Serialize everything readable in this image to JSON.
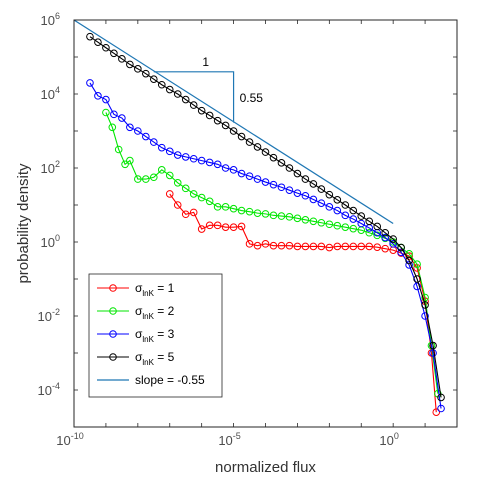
{
  "chart_data": {
    "type": "line",
    "title": "",
    "xlabel": "normalized flux",
    "ylabel": "probability density",
    "xscale": "log",
    "yscale": "log",
    "xlim": [
      1e-10,
      100
    ],
    "ylim": [
      1e-05,
      1000000.0
    ],
    "x_ticks": [
      {
        "base": "10",
        "exp": "-10"
      },
      {
        "base": "10",
        "exp": "-5"
      },
      {
        "base": "10",
        "exp": "0"
      }
    ],
    "y_ticks": [
      {
        "base": "10",
        "exp": "6"
      },
      {
        "base": "10",
        "exp": "4"
      },
      {
        "base": "10",
        "exp": "2"
      },
      {
        "base": "10",
        "exp": "0"
      },
      {
        "base": "10",
        "exp": "-2"
      },
      {
        "base": "10",
        "exp": "-4"
      }
    ],
    "grid": false,
    "legend_placement": "bottom-left",
    "series": [
      {
        "name_main": "σ",
        "name_sub": "lnK",
        "name_rest": " = 1",
        "color": "#ff0000",
        "log_x": [
          -7.0,
          -6.75,
          -6.5,
          -6.25,
          -6.0,
          -5.75,
          -5.5,
          -5.25,
          -5.0,
          -4.75,
          -4.5,
          -4.25,
          -4.0,
          -3.75,
          -3.5,
          -3.25,
          -3.0,
          -2.75,
          -2.5,
          -2.25,
          -2.0,
          -1.75,
          -1.5,
          -1.25,
          -1.0,
          -0.75,
          -0.5,
          -0.25,
          0.0,
          0.25,
          0.5,
          0.75,
          1.0,
          1.2,
          1.35
        ],
        "log_y": [
          1.3,
          1.0,
          0.75,
          0.8,
          0.35,
          0.45,
          0.45,
          0.4,
          0.4,
          0.42,
          -0.05,
          -0.1,
          -0.05,
          -0.1,
          -0.1,
          -0.1,
          -0.12,
          -0.12,
          -0.12,
          -0.12,
          -0.15,
          -0.12,
          -0.12,
          -0.12,
          -0.12,
          -0.12,
          -0.14,
          -0.18,
          -0.22,
          -0.3,
          -0.38,
          -0.7,
          -1.6,
          -3.0,
          -4.6
        ]
      },
      {
        "name_main": "σ",
        "name_sub": "lnK",
        "name_rest": " = 2",
        "color": "#00e600",
        "log_x": [
          -9.0,
          -8.8,
          -8.6,
          -8.4,
          -8.25,
          -8.0,
          -7.75,
          -7.5,
          -7.25,
          -7.0,
          -6.75,
          -6.5,
          -6.25,
          -6.0,
          -5.75,
          -5.5,
          -5.25,
          -5.0,
          -4.75,
          -4.5,
          -4.25,
          -4.0,
          -3.75,
          -3.5,
          -3.25,
          -3.0,
          -2.75,
          -2.5,
          -2.25,
          -2.0,
          -1.75,
          -1.5,
          -1.25,
          -1.0,
          -0.75,
          -0.5,
          -0.25,
          0.0,
          0.25,
          0.5,
          0.75,
          1.0,
          1.2,
          1.4
        ],
        "log_y": [
          3.5,
          3.1,
          2.5,
          2.1,
          2.2,
          1.7,
          1.7,
          1.75,
          1.95,
          1.8,
          1.6,
          1.45,
          1.3,
          1.2,
          1.1,
          0.95,
          0.95,
          0.9,
          0.85,
          0.82,
          0.78,
          0.76,
          0.72,
          0.7,
          0.68,
          0.64,
          0.6,
          0.56,
          0.52,
          0.48,
          0.44,
          0.4,
          0.36,
          0.32,
          0.25,
          0.18,
          0.1,
          0.0,
          -0.15,
          -0.32,
          -0.6,
          -1.5,
          -2.8,
          -4.1
        ]
      },
      {
        "name_main": "σ",
        "name_sub": "lnK",
        "name_rest": " = 3",
        "color": "#0000ff",
        "log_x": [
          -9.5,
          -9.25,
          -9.0,
          -8.75,
          -8.5,
          -8.25,
          -8.0,
          -7.75,
          -7.5,
          -7.25,
          -7.0,
          -6.75,
          -6.5,
          -6.25,
          -6.0,
          -5.75,
          -5.5,
          -5.25,
          -5.0,
          -4.75,
          -4.5,
          -4.25,
          -4.0,
          -3.75,
          -3.5,
          -3.25,
          -3.0,
          -2.75,
          -2.5,
          -2.25,
          -2.0,
          -1.75,
          -1.5,
          -1.25,
          -1.0,
          -0.75,
          -0.5,
          -0.25,
          0.0,
          0.25,
          0.5,
          0.75,
          1.0,
          1.25,
          1.5
        ],
        "log_y": [
          4.3,
          3.95,
          3.85,
          3.45,
          3.35,
          3.1,
          3.0,
          2.85,
          2.7,
          2.55,
          2.45,
          2.35,
          2.3,
          2.25,
          2.2,
          2.15,
          2.1,
          2.0,
          1.95,
          1.85,
          1.78,
          1.7,
          1.62,
          1.55,
          1.48,
          1.4,
          1.32,
          1.25,
          1.15,
          1.05,
          0.95,
          0.85,
          0.72,
          0.62,
          0.5,
          0.38,
          0.25,
          0.12,
          -0.05,
          -0.28,
          -0.62,
          -1.2,
          -2.0,
          -3.0,
          -4.5
        ]
      },
      {
        "name_main": "σ",
        "name_sub": "lnK",
        "name_rest": " = 5",
        "color": "#000000",
        "log_x": [
          -9.5,
          -9.25,
          -9.0,
          -8.75,
          -8.5,
          -8.25,
          -8.0,
          -7.75,
          -7.5,
          -7.25,
          -7.0,
          -6.75,
          -6.5,
          -6.25,
          -6.0,
          -5.75,
          -5.5,
          -5.25,
          -5.0,
          -4.75,
          -4.5,
          -4.25,
          -4.0,
          -3.75,
          -3.5,
          -3.25,
          -3.0,
          -2.75,
          -2.5,
          -2.25,
          -2.0,
          -1.75,
          -1.5,
          -1.25,
          -1.0,
          -0.75,
          -0.5,
          -0.25,
          0.0,
          0.25,
          0.5,
          0.75,
          1.0,
          1.25,
          1.5
        ],
        "log_y": [
          5.55,
          5.4,
          5.25,
          5.1,
          4.95,
          4.8,
          4.68,
          4.55,
          4.4,
          4.25,
          4.12,
          4.0,
          3.85,
          3.7,
          3.55,
          3.42,
          3.28,
          3.15,
          3.0,
          2.85,
          2.7,
          2.57,
          2.43,
          2.28,
          2.14,
          2.0,
          1.85,
          1.7,
          1.57,
          1.43,
          1.28,
          1.14,
          1.0,
          0.85,
          0.7,
          0.56,
          0.42,
          0.25,
          0.08,
          -0.15,
          -0.5,
          -1.0,
          -1.7,
          -2.8,
          -4.2
        ]
      }
    ],
    "slope_line": {
      "label": "slope = -0.55",
      "color": "#1f77b4",
      "slope": -0.55,
      "log_x": [
        -10,
        0
      ],
      "log_y_start": 6.0
    },
    "triangle": {
      "color": "#1f77b4",
      "log_x": [
        -7.5,
        -5.0
      ],
      "log_y_top": 4.6,
      "run_label": "1",
      "rise_label": "0.55"
    }
  }
}
